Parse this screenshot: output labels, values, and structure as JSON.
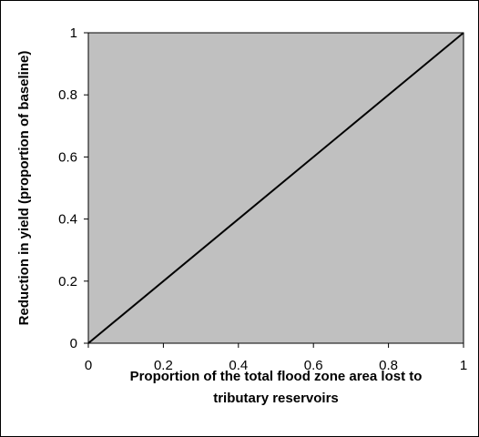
{
  "chart_data": {
    "type": "line",
    "title": "",
    "xlabel_lines": [
      "Proportion of the total flood zone area lost to",
      "tributary reservoirs"
    ],
    "ylabel": "Reduction in yield (proportion of baseline)",
    "xlim": [
      0,
      1
    ],
    "ylim": [
      0,
      1
    ],
    "xticks": [
      0,
      0.2,
      0.4,
      0.6,
      0.8,
      1
    ],
    "xtick_labels": [
      "0",
      "0.2",
      "0.4",
      "0.6",
      "0.8",
      "1"
    ],
    "yticks": [
      0,
      0.2,
      0.4,
      0.6,
      0.8,
      1
    ],
    "ytick_labels": [
      "0",
      "0.2",
      "0.4",
      "0.6",
      "0.8",
      "1"
    ],
    "grid": false,
    "legend": "none",
    "series": [
      {
        "x": [
          0,
          1
        ],
        "y": [
          0,
          1
        ]
      }
    ]
  },
  "colors": {
    "plot_background": "#c0c0c0",
    "line": "#000000",
    "axis": "#000000"
  }
}
